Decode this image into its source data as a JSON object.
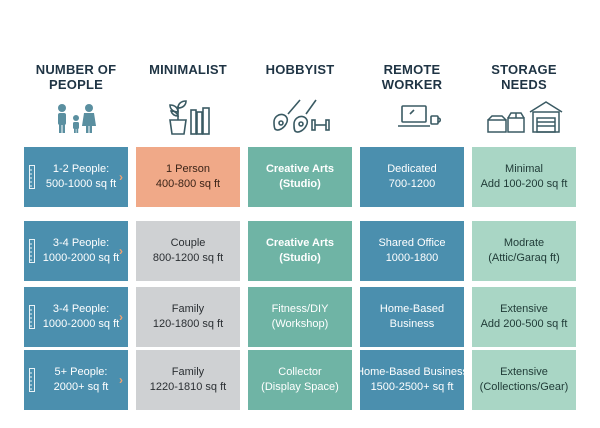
{
  "headers": [
    {
      "title": "NUMBER OF PEOPLE",
      "icon": "family-icon"
    },
    {
      "title": "MINIMALIST",
      "icon": "plant-books-icon"
    },
    {
      "title": "HOBBYIST",
      "icon": "guitar-dumbbell-icon"
    },
    {
      "title": "REMOTE WORKER",
      "icon": "laptop-mug-icon"
    },
    {
      "title": "STORAGE NEEDS",
      "icon": "boxes-garage-icon"
    }
  ],
  "rows": [
    {
      "people": [
        "1-2 People:",
        "500-1000 sq ft"
      ],
      "minimalist": [
        "1 Person",
        "400-800 sq ft"
      ],
      "hobbyist": [
        "Creative Arts",
        "(Studio)"
      ],
      "remote": [
        "Dedicated",
        "700-1200"
      ],
      "storage": [
        "Minimal",
        "Add 100-200 sq ft"
      ]
    },
    {
      "people": [
        "3-4 People:",
        "1000-2000 sq ft"
      ],
      "minimalist": [
        "Couple",
        "800-1200 sq ft"
      ],
      "hobbyist": [
        "Creative Arts",
        "(Studio)"
      ],
      "remote": [
        "Shared Office",
        "1000-1800"
      ],
      "storage": [
        "Modrate",
        "(Attic/Garaq ft)"
      ]
    },
    {
      "people": [
        "3-4 People:",
        "1000-2000 sq ft"
      ],
      "minimalist": [
        "Family",
        "120-1800 sq ft"
      ],
      "hobbyist": [
        "Fitness/DIY",
        "(Workshop)"
      ],
      "remote": [
        "Home-Based",
        "Business"
      ],
      "storage": [
        "Extensive",
        "Add 200-500 sq ft"
      ]
    },
    {
      "people": [
        "5+ People:",
        "2000+ sq ft"
      ],
      "minimalist": [
        "Family",
        "1220-1810 sq ft"
      ],
      "hobbyist": [
        "Collector",
        "(Display Space)"
      ],
      "remote": [
        "Home-Based Business",
        "1500-2500+ sq ft"
      ],
      "storage": [
        "Extensive",
        "(Collections/Gear)"
      ]
    }
  ],
  "colors": {
    "blue": "#4b8fae",
    "teal": "#6fb4a5",
    "mint": "#a9d6c5",
    "peach": "#f0a988",
    "gray": "#cfd1d3",
    "heading": "#1f3444",
    "arrow": "#f2a170"
  }
}
